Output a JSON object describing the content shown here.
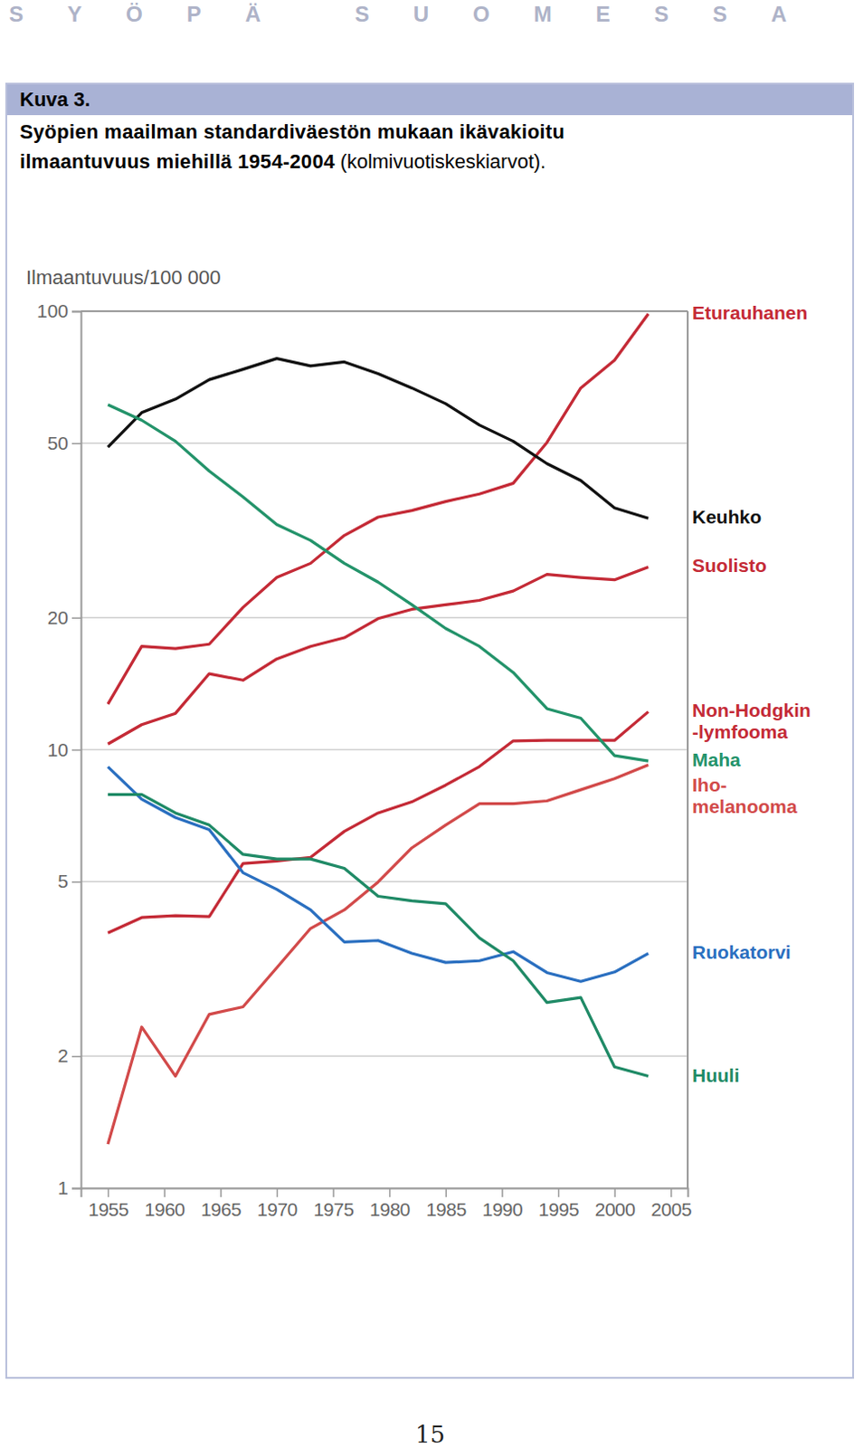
{
  "page": {
    "header": "SYÖPÄ SUOMESSA",
    "figure": "Kuva 3.",
    "page_number": "15"
  },
  "chart_data": {
    "type": "line",
    "title": "Syöpien maailman standardiväestön mukaan ikävakioitu ilmaantuvuus miehillä 1954-2004",
    "subtitle": "(kolmivuotiskeskiarvot).",
    "ylabel": "Ilmaantuvuus/100 000",
    "log": "y",
    "grid": true,
    "x": [
      1955,
      1958,
      1961,
      1964,
      1967,
      1970,
      1973,
      1976,
      1979,
      1982,
      1985,
      1988,
      1991,
      1994,
      1997,
      2000,
      2003
    ],
    "xlim": [
      1952.6,
      2006.5
    ],
    "xticks": [
      1955,
      1960,
      1965,
      1970,
      1975,
      1980,
      1985,
      1990,
      1995,
      2000,
      2005
    ],
    "ylim": [
      1,
      100
    ],
    "yticks": [
      1,
      2,
      5,
      10,
      20,
      50,
      100
    ],
    "series": [
      {
        "name": "Eturauhanen",
        "color": "#c42a36",
        "values": [
          12.7,
          17.2,
          17.0,
          17.4,
          21.1,
          24.7,
          26.6,
          30.8,
          33.9,
          35.1,
          36.8,
          38.3,
          40.5,
          50.2,
          66.8,
          77.3,
          98.6
        ]
      },
      {
        "name": "Keuhko",
        "color": "#111111",
        "values": [
          49,
          58.7,
          63,
          69.8,
          73.7,
          78,
          75,
          76.6,
          72,
          66.8,
          61.5,
          55,
          50.5,
          44.9,
          41.1,
          35.6,
          33.7
        ]
      },
      {
        "name": "Suolisto",
        "color": "#c42a36",
        "values": [
          10.3,
          11.4,
          12.1,
          14.9,
          14.4,
          16.1,
          17.2,
          18.0,
          19.9,
          20.9,
          21.4,
          21.9,
          23.0,
          25.1,
          24.7,
          24.4,
          26.1
        ]
      },
      {
        "name": "Non-Hodgkin -lymfooma",
        "color": "#c42a36",
        "values": [
          3.82,
          4.14,
          4.18,
          4.16,
          5.5,
          5.57,
          5.68,
          6.51,
          7.17,
          7.6,
          8.3,
          9.15,
          10.47,
          10.5,
          10.5,
          10.5,
          12.2
        ]
      },
      {
        "name": "Maha",
        "color": "#23936a",
        "values": [
          61.2,
          56.4,
          50.5,
          43.2,
          37.7,
          32.6,
          30.0,
          26.6,
          24.1,
          21.4,
          18.9,
          17.2,
          15.0,
          12.4,
          11.8,
          9.69,
          9.42
        ]
      },
      {
        "name": "Iho- melanooma",
        "color": "#d24a4a",
        "values": [
          1.26,
          2.33,
          1.8,
          2.49,
          2.59,
          3.18,
          3.91,
          4.31,
          4.99,
          5.97,
          6.73,
          7.53,
          7.53,
          7.64,
          8.1,
          8.59,
          9.23
        ]
      },
      {
        "name": "Ruokatorvi",
        "color": "#2a6fc0",
        "values": [
          9.14,
          7.71,
          7.0,
          6.57,
          5.24,
          4.8,
          4.31,
          3.64,
          3.67,
          3.43,
          3.27,
          3.3,
          3.46,
          3.1,
          2.96,
          3.11,
          3.43
        ]
      },
      {
        "name": "Huuli",
        "color": "#1f8a66",
        "values": [
          7.9,
          7.9,
          7.17,
          6.73,
          5.77,
          5.63,
          5.63,
          5.36,
          4.63,
          4.52,
          4.45,
          3.72,
          3.3,
          2.65,
          2.72,
          1.89,
          1.8
        ]
      }
    ]
  }
}
